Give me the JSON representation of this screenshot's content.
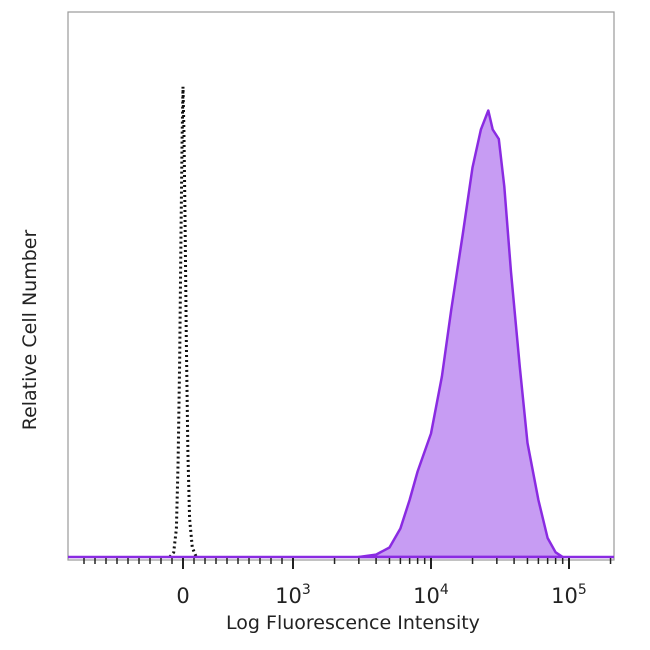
{
  "chart_data": {
    "type": "area",
    "xlabel": "Log Fluorescence Intensity",
    "ylabel": "Relative Cell Number",
    "x_scale": "biexponential",
    "x_ticks": [
      {
        "value": 0,
        "base": "0",
        "exp": ""
      },
      {
        "value": 1000,
        "base": "10",
        "exp": "3"
      },
      {
        "value": 10000,
        "base": "10",
        "exp": "4"
      },
      {
        "value": 100000,
        "base": "10",
        "exp": "5"
      }
    ],
    "ylim": [
      0,
      100
    ],
    "grid": false,
    "series": [
      {
        "style": "dotted-outline",
        "color": "#111111",
        "points": [
          [
            -120,
            0
          ],
          [
            -85,
            1
          ],
          [
            -60,
            6
          ],
          [
            -45,
            20
          ],
          [
            -30,
            42
          ],
          [
            -18,
            68
          ],
          [
            -8,
            88
          ],
          [
            0,
            99
          ],
          [
            8,
            90
          ],
          [
            18,
            72
          ],
          [
            30,
            46
          ],
          [
            45,
            22
          ],
          [
            60,
            8
          ],
          [
            85,
            2
          ],
          [
            120,
            0
          ]
        ]
      },
      {
        "style": "filled",
        "color": "#8a2be2",
        "fill": "#c79cf3",
        "points": [
          [
            3000,
            0
          ],
          [
            4000,
            0.5
          ],
          [
            5000,
            2
          ],
          [
            6000,
            6
          ],
          [
            7000,
            12
          ],
          [
            8000,
            18
          ],
          [
            10000,
            26
          ],
          [
            12000,
            38
          ],
          [
            14000,
            52
          ],
          [
            17000,
            68
          ],
          [
            20000,
            82
          ],
          [
            23000,
            90
          ],
          [
            26000,
            94
          ],
          [
            28000,
            90
          ],
          [
            31000,
            88
          ],
          [
            34000,
            78
          ],
          [
            38000,
            60
          ],
          [
            44000,
            40
          ],
          [
            50000,
            24
          ],
          [
            60000,
            12
          ],
          [
            70000,
            4
          ],
          [
            80000,
            1
          ],
          [
            90000,
            0
          ]
        ]
      }
    ]
  }
}
